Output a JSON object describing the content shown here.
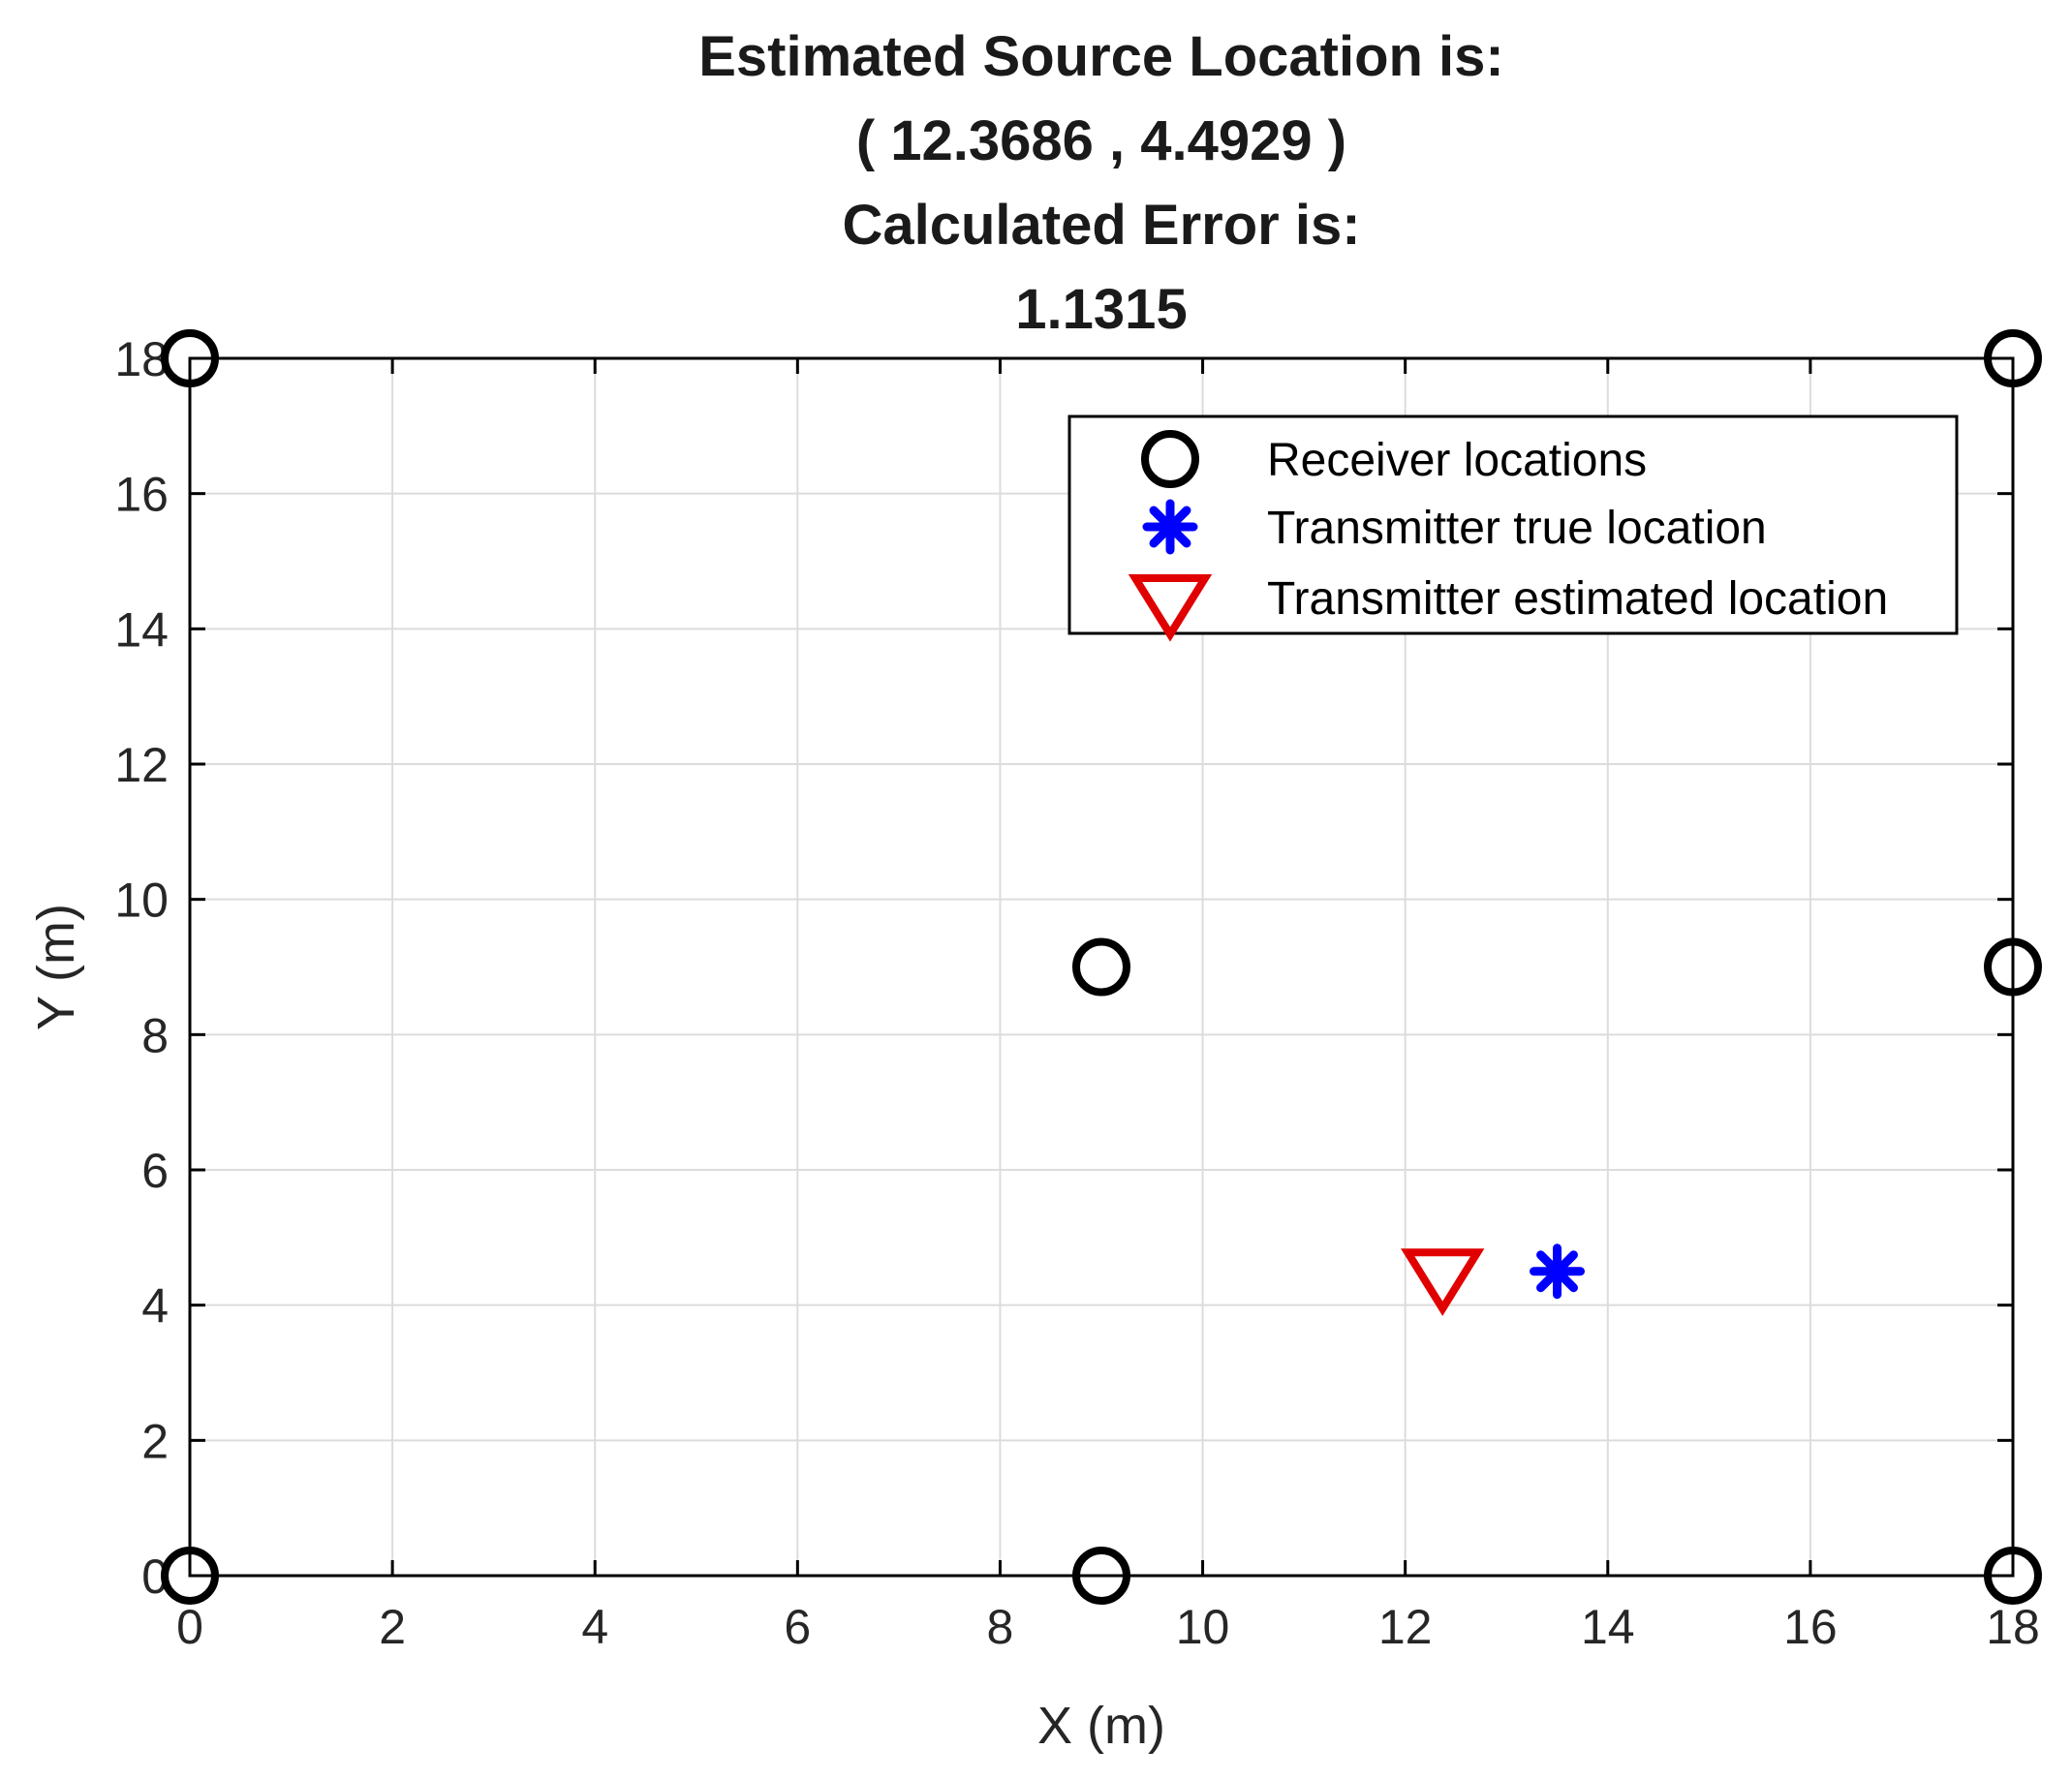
{
  "chart_data": {
    "type": "scatter",
    "title_lines": [
      "Estimated Source Location is:",
      "(  12.3686  ,  4.4929  )",
      "Calculated Error is:",
      "1.1315"
    ],
    "xlabel": "X (m)",
    "ylabel": "Y (m)",
    "xlim": [
      0,
      18
    ],
    "ylim": [
      0,
      18
    ],
    "xticks": [
      0,
      2,
      4,
      6,
      8,
      10,
      12,
      14,
      16,
      18
    ],
    "yticks": [
      0,
      2,
      4,
      6,
      8,
      10,
      12,
      14,
      16,
      18
    ],
    "grid": true,
    "legend_position": "top-right",
    "series": [
      {
        "name": "Receiver locations",
        "marker": "circle",
        "color": "#000000",
        "points": [
          [
            0,
            18
          ],
          [
            18,
            18
          ],
          [
            9,
            9
          ],
          [
            18,
            9
          ],
          [
            0,
            0
          ],
          [
            9,
            0
          ],
          [
            18,
            0
          ]
        ]
      },
      {
        "name": "Transmitter true location",
        "marker": "asterisk",
        "color": "#0000ff",
        "points": [
          [
            13.5,
            4.5
          ]
        ]
      },
      {
        "name": "Transmitter estimated location",
        "marker": "triangle-down",
        "color": "#e00000",
        "points": [
          [
            12.3686,
            4.4929
          ]
        ]
      }
    ]
  }
}
